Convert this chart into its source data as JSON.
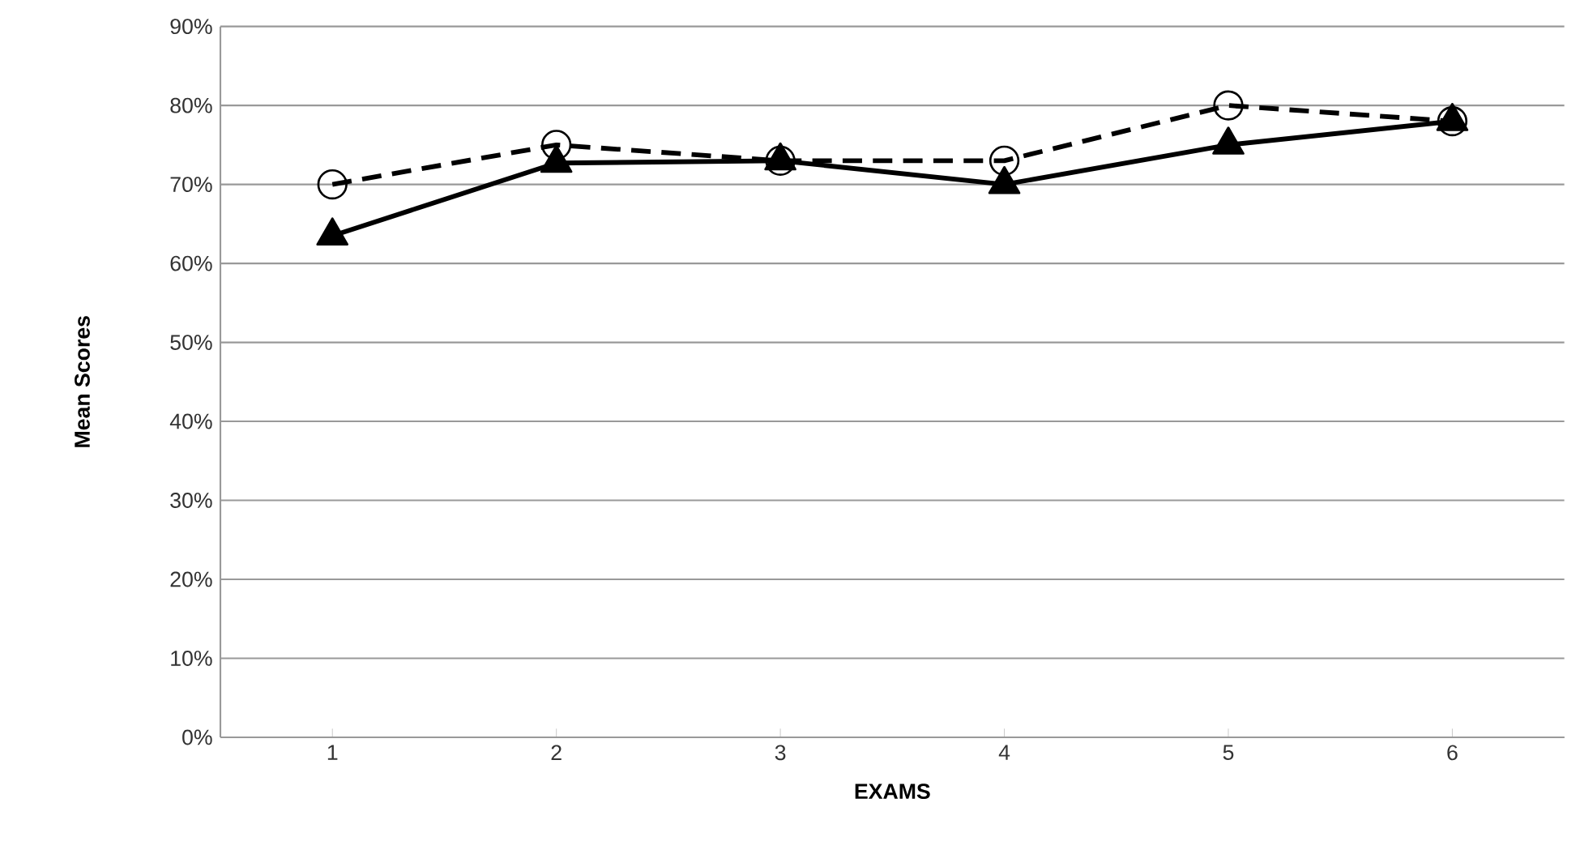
{
  "chart_data": {
    "type": "line",
    "xlabel": "EXAMS",
    "ylabel": "Mean Scores",
    "categories": [
      "1",
      "2",
      "3",
      "4",
      "5",
      "6"
    ],
    "series": [
      {
        "color": "#000000",
        "marker": "triangle",
        "line_style": "solid",
        "values": [
          0.635,
          0.727,
          0.73,
          0.7,
          0.75,
          0.78
        ]
      },
      {
        "color": "#000000",
        "marker": "circle",
        "line_style": "dashed",
        "values": [
          0.7,
          0.75,
          0.73,
          0.73,
          0.8,
          0.78
        ]
      }
    ],
    "ylim": [
      0,
      0.9
    ],
    "yticks": [
      {
        "value": 0,
        "label": "0%"
      },
      {
        "value": 0.1,
        "label": "10%"
      },
      {
        "value": 0.2,
        "label": "20%"
      },
      {
        "value": 0.3,
        "label": "30%"
      },
      {
        "value": 0.4,
        "label": "40%"
      },
      {
        "value": 0.5,
        "label": "50%"
      },
      {
        "value": 0.6,
        "label": "60%"
      },
      {
        "value": 0.7,
        "label": "70%"
      },
      {
        "value": 0.8,
        "label": "80%"
      },
      {
        "value": 0.9,
        "label": "90%"
      }
    ],
    "grid": "y"
  }
}
